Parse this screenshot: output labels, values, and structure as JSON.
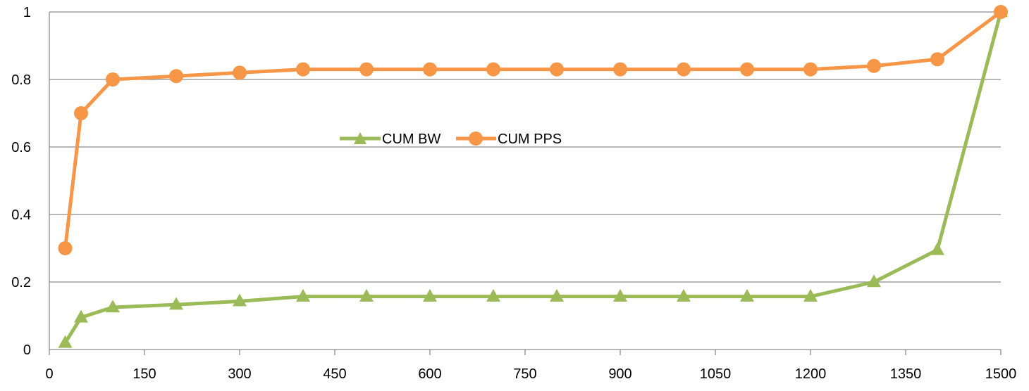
{
  "chart_data": {
    "type": "line",
    "title": "",
    "xlabel": "",
    "ylabel": "",
    "xlim": [
      0,
      1500
    ],
    "ylim": [
      0,
      1
    ],
    "x_ticks": [
      "0",
      "150",
      "300",
      "450",
      "600",
      "750",
      "900",
      "1050",
      "1200",
      "1350",
      "1500"
    ],
    "y_ticks": [
      "0",
      "0.2",
      "0.4",
      "0.6",
      "0.8",
      "1"
    ],
    "grid": "horizontal",
    "legend_position": "center-left",
    "x": [
      25,
      50,
      100,
      200,
      300,
      400,
      500,
      600,
      700,
      800,
      900,
      1000,
      1100,
      1200,
      1300,
      1400,
      1500
    ],
    "series": [
      {
        "name": "CUM BW",
        "color": "#9BBB59",
        "marker": "triangle",
        "values": [
          0.02,
          0.095,
          0.125,
          0.133,
          0.143,
          0.157,
          0.157,
          0.157,
          0.157,
          0.157,
          0.157,
          0.157,
          0.157,
          0.157,
          0.2,
          0.295,
          1.0
        ]
      },
      {
        "name": "CUM PPS",
        "color": "#F79646",
        "marker": "circle",
        "values": [
          0.3,
          0.7,
          0.8,
          0.81,
          0.82,
          0.83,
          0.83,
          0.83,
          0.83,
          0.83,
          0.83,
          0.83,
          0.83,
          0.83,
          0.84,
          0.86,
          1.0
        ]
      }
    ]
  }
}
